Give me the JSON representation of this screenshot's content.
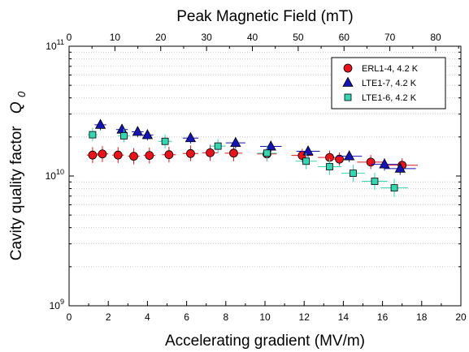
{
  "chart_data": {
    "type": "scatter",
    "title": "",
    "xlabel": "Accelerating gradient (MV/m)",
    "ylabel": "Cavity quality factor",
    "ylabel_symbol": "Q",
    "ylabel_subscript": "0",
    "top_xlabel": "Peak Magnetic Field (mT)",
    "xlim": [
      0,
      20
    ],
    "top_xlim": [
      0,
      85.5
    ],
    "ylim": [
      1000000000,
      100000000000
    ],
    "yscale": "log",
    "grid": "dotted",
    "legend_position": "top-right",
    "x_ticks": [
      "0",
      "2",
      "4",
      "6",
      "8",
      "10",
      "12",
      "14",
      "16",
      "18",
      "20"
    ],
    "top_x_ticks": [
      "0",
      "10",
      "20",
      "30",
      "40",
      "50",
      "60",
      "70",
      "80"
    ],
    "y_ticks": [
      {
        "base": "10",
        "exp": "9",
        "value": 1000000000
      },
      {
        "base": "10",
        "exp": "10",
        "value": 10000000000
      },
      {
        "base": "10",
        "exp": "11",
        "value": 100000000000
      }
    ],
    "series": [
      {
        "name": "ERL1-4, 4.2 K",
        "marker": "circle",
        "color": "#e8141c",
        "points": [
          {
            "x": 1.2,
            "y": 14500000000,
            "xerr": 0.3,
            "ylo": 12600000000,
            "yhi": 16700000000
          },
          {
            "x": 1.7,
            "y": 14800000000,
            "xerr": 0.3,
            "ylo": 12800000000,
            "yhi": 17000000000
          },
          {
            "x": 2.5,
            "y": 14500000000,
            "xerr": 0.3,
            "ylo": 12600000000,
            "yhi": 16700000000
          },
          {
            "x": 3.3,
            "y": 14200000000,
            "xerr": 0.3,
            "ylo": 12300000000,
            "yhi": 16400000000
          },
          {
            "x": 4.1,
            "y": 14400000000,
            "xerr": 0.3,
            "ylo": 12500000000,
            "yhi": 16600000000
          },
          {
            "x": 5.1,
            "y": 14600000000,
            "xerr": 0.35,
            "ylo": 12700000000,
            "yhi": 16800000000
          },
          {
            "x": 6.2,
            "y": 14900000000,
            "xerr": 0.4,
            "ylo": 13000000000,
            "yhi": 17200000000
          },
          {
            "x": 7.2,
            "y": 15100000000,
            "xerr": 0.4,
            "ylo": 13100000000,
            "yhi": 17400000000
          },
          {
            "x": 8.4,
            "y": 15000000000,
            "xerr": 0.45,
            "ylo": 13000000000,
            "yhi": 17300000000
          },
          {
            "x": 10.1,
            "y": 14800000000,
            "xerr": 0.5,
            "ylo": 13000000000,
            "yhi": 16800000000
          },
          {
            "x": 11.9,
            "y": 14400000000,
            "xerr": 0.55,
            "ylo": 12800000000,
            "yhi": 16200000000
          },
          {
            "x": 13.3,
            "y": 13900000000,
            "xerr": 0.6,
            "ylo": 12300000000,
            "yhi": 15700000000
          },
          {
            "x": 13.8,
            "y": 13500000000,
            "xerr": 0.6,
            "ylo": 12000000000,
            "yhi": 15200000000
          },
          {
            "x": 15.4,
            "y": 12800000000,
            "xerr": 0.7,
            "ylo": 11300000000,
            "yhi": 14500000000
          },
          {
            "x": 17.0,
            "y": 12100000000,
            "xerr": 0.8,
            "ylo": 10700000000,
            "yhi": 13700000000
          }
        ]
      },
      {
        "name": "LTE1-7, 4.2 K",
        "marker": "triangle",
        "color": "#1414b4",
        "points": [
          {
            "x": 1.6,
            "y": 24800000000,
            "xerr": 0.3,
            "ylo": 22500000000,
            "yhi": 27300000000
          },
          {
            "x": 2.7,
            "y": 22800000000,
            "xerr": 0.3,
            "ylo": 20700000000,
            "yhi": 25100000000
          },
          {
            "x": 3.5,
            "y": 21900000000,
            "xerr": 0.3,
            "ylo": 19900000000,
            "yhi": 24100000000
          },
          {
            "x": 4.0,
            "y": 20700000000,
            "xerr": 0.3,
            "ylo": 18800000000,
            "yhi": 22800000000
          },
          {
            "x": 6.2,
            "y": 19600000000,
            "xerr": 0.4,
            "ylo": 17800000000,
            "yhi": 21600000000
          },
          {
            "x": 8.5,
            "y": 18000000000,
            "xerr": 0.5,
            "ylo": 16300000000,
            "yhi": 19900000000
          },
          {
            "x": 10.3,
            "y": 16900000000,
            "xerr": 0.55,
            "ylo": 15300000000,
            "yhi": 18700000000
          },
          {
            "x": 12.2,
            "y": 15500000000,
            "xerr": 0.6,
            "ylo": 14000000000,
            "yhi": 17100000000
          },
          {
            "x": 14.3,
            "y": 14200000000,
            "xerr": 0.65,
            "ylo": 12800000000,
            "yhi": 15700000000
          },
          {
            "x": 16.1,
            "y": 12300000000,
            "xerr": 0.7,
            "ylo": 11000000000,
            "yhi": 13700000000
          },
          {
            "x": 16.9,
            "y": 11400000000,
            "xerr": 0.8,
            "ylo": 10200000000,
            "yhi": 12700000000
          }
        ]
      },
      {
        "name": "LTE1-6, 4.2 K",
        "marker": "square",
        "color": "#36d6b2",
        "points": [
          {
            "x": 1.2,
            "y": 20800000000,
            "xerr": 0.25,
            "ylo": 18500000000,
            "yhi": 23500000000
          },
          {
            "x": 2.8,
            "y": 20400000000,
            "xerr": 0.3,
            "ylo": 18200000000,
            "yhi": 23000000000
          },
          {
            "x": 4.9,
            "y": 18500000000,
            "xerr": 0.35,
            "ylo": 16300000000,
            "yhi": 21000000000
          },
          {
            "x": 7.6,
            "y": 17000000000,
            "xerr": 0.4,
            "ylo": 15000000000,
            "yhi": 19300000000
          },
          {
            "x": 10.1,
            "y": 15000000000,
            "xerr": 0.5,
            "ylo": 13100000000,
            "yhi": 17200000000
          },
          {
            "x": 12.1,
            "y": 13000000000,
            "xerr": 0.55,
            "ylo": 11300000000,
            "yhi": 15000000000
          },
          {
            "x": 13.3,
            "y": 11800000000,
            "xerr": 0.6,
            "ylo": 10200000000,
            "yhi": 13600000000
          },
          {
            "x": 14.5,
            "y": 10500000000,
            "xerr": 0.6,
            "ylo": 9000000000,
            "yhi": 12200000000
          },
          {
            "x": 15.6,
            "y": 9100000000,
            "xerr": 0.65,
            "ylo": 7800000000,
            "yhi": 10600000000
          },
          {
            "x": 16.6,
            "y": 8100000000,
            "xerr": 0.7,
            "ylo": 6900000000,
            "yhi": 9500000000
          }
        ]
      }
    ]
  }
}
